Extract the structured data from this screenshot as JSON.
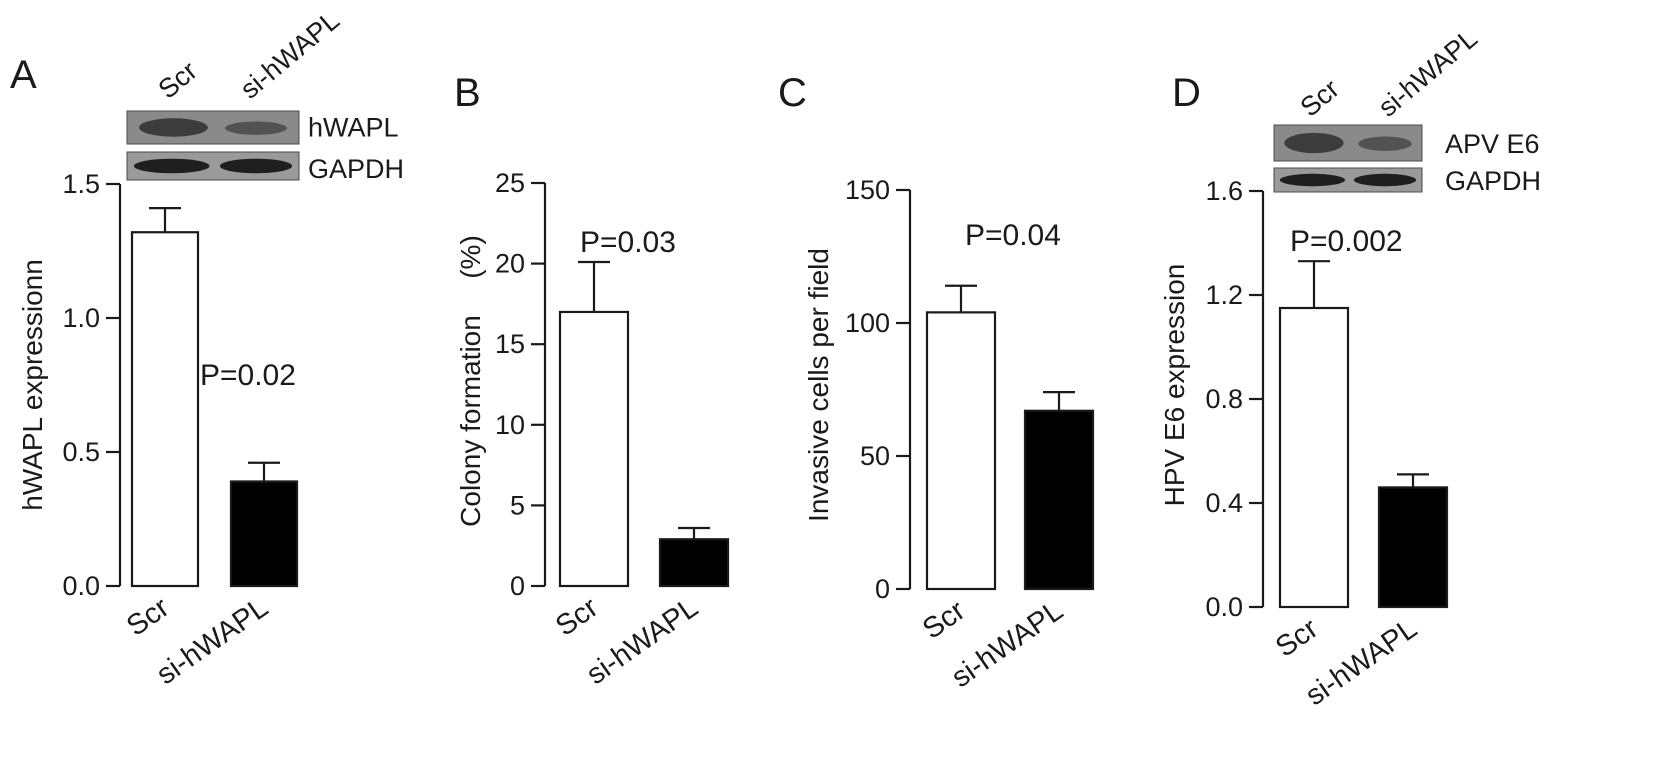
{
  "chart_data": [
    {
      "panel": "A",
      "type": "bar",
      "categories": [
        "Scr",
        "si-hWAPL"
      ],
      "values": [
        1.32,
        0.39
      ],
      "errors": [
        0.09,
        0.07
      ],
      "bar_colors": [
        "#ffffff",
        "#000000"
      ],
      "ylabel": "hWAPL expressionn",
      "ylim": [
        0,
        1.5
      ],
      "yticks": [
        0.0,
        0.5,
        1.0,
        1.5
      ],
      "ytick_labels": [
        "0.0",
        "0.5",
        "1.0",
        "1.5"
      ],
      "annotation": "P=0.02",
      "blot": {
        "lanes": [
          "Scr",
          "si-hWAPL"
        ],
        "rows": [
          "hWAPL",
          "GAPDH"
        ]
      }
    },
    {
      "panel": "B",
      "type": "bar",
      "categories": [
        "Scr",
        "si-hWAPL"
      ],
      "values": [
        17,
        2.9
      ],
      "errors": [
        3.1,
        0.7
      ],
      "bar_colors": [
        "#ffffff",
        "#000000"
      ],
      "ylabel": "Colony formation",
      "ylabel_unit": "(%)",
      "ylim": [
        0,
        25
      ],
      "yticks": [
        0,
        5,
        10,
        15,
        20,
        25
      ],
      "ytick_labels": [
        "0",
        "5",
        "10",
        "15",
        "20",
        "25"
      ],
      "annotation": "P=0.03"
    },
    {
      "panel": "C",
      "type": "bar",
      "categories": [
        "Scr",
        "si-hWAPL"
      ],
      "values": [
        104,
        67
      ],
      "errors": [
        10,
        7
      ],
      "bar_colors": [
        "#ffffff",
        "#000000"
      ],
      "ylabel": "Invasive cells per field",
      "ylim": [
        0,
        150
      ],
      "yticks": [
        0,
        50,
        100,
        150
      ],
      "ytick_labels": [
        "0",
        "50",
        "100",
        "150"
      ],
      "annotation": "P=0.04"
    },
    {
      "panel": "D",
      "type": "bar",
      "categories": [
        "Scr",
        "si-hWAPL"
      ],
      "values": [
        1.15,
        0.46
      ],
      "errors": [
        0.18,
        0.05
      ],
      "bar_colors": [
        "#ffffff",
        "#000000"
      ],
      "ylabel": "HPV E6 expression",
      "ylim": [
        0,
        1.6
      ],
      "yticks": [
        0.0,
        0.4,
        0.8,
        1.2,
        1.6
      ],
      "ytick_labels": [
        "0.0",
        "0.4",
        "0.8",
        "1.2",
        "1.6"
      ],
      "annotation": "P=0.002",
      "blot": {
        "lanes": [
          "Scr",
          "si-hWAPL"
        ],
        "rows": [
          "APV E6",
          "GAPDH"
        ]
      }
    }
  ]
}
